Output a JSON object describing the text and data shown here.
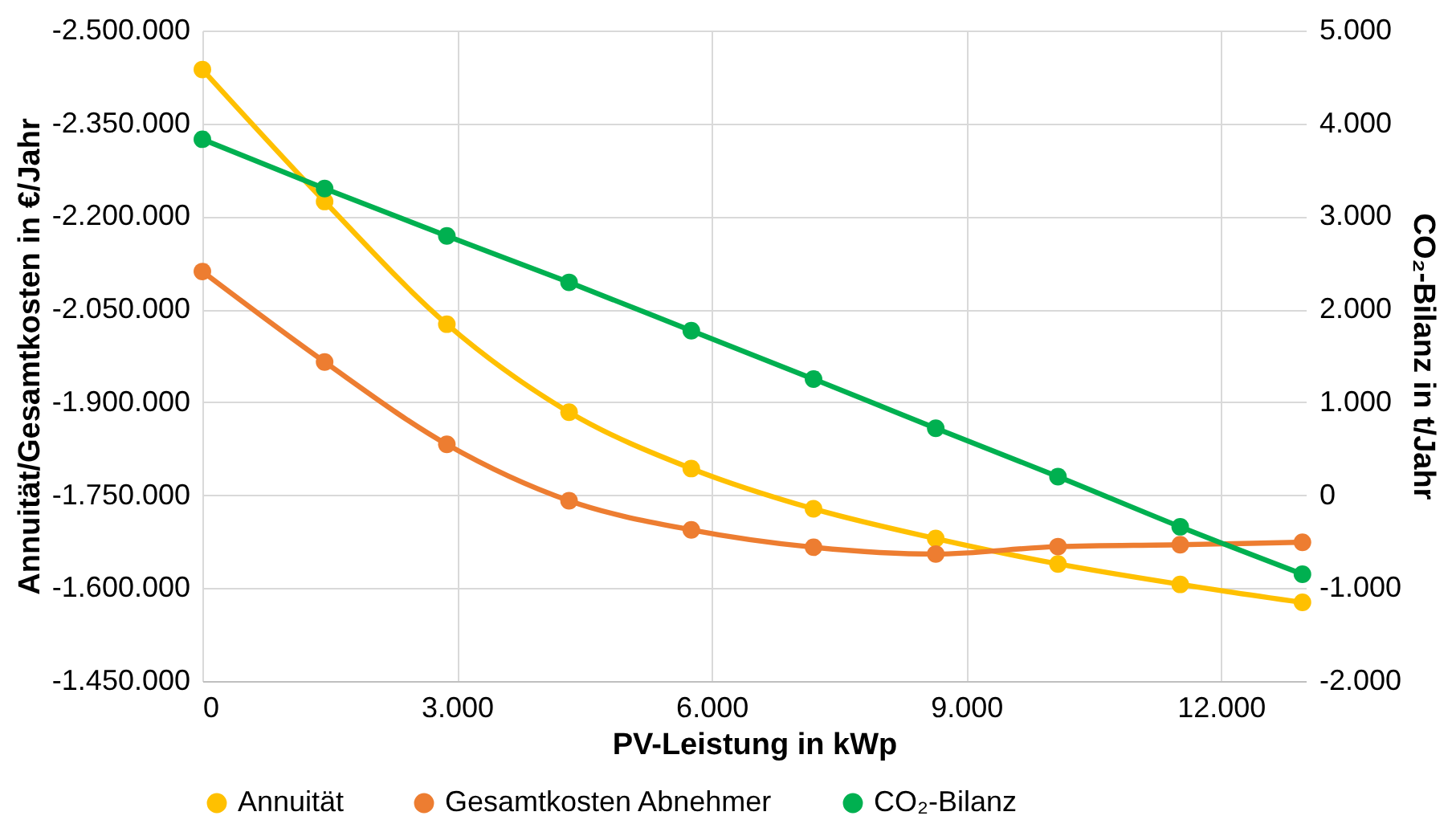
{
  "chart_data": {
    "type": "line",
    "x": [
      0,
      1440,
      2880,
      4320,
      5760,
      7200,
      8640,
      10080,
      11520,
      12960
    ],
    "xlim": [
      0,
      13000
    ],
    "xticks": [
      0,
      {
        "value": 3000,
        "label": "3.000"
      },
      {
        "value": 6000,
        "label": "6.000"
      },
      {
        "value": 9000,
        "label": "9.000"
      },
      {
        "value": 12000,
        "label": "12.000"
      }
    ],
    "ylim": [
      -1450000,
      -2500000
    ],
    "yticks": [
      {
        "value": -2500000,
        "label": "-2.500.000"
      },
      {
        "value": -2350000,
        "label": "-2.350.000"
      },
      {
        "value": -2200000,
        "label": "-2.200.000"
      },
      {
        "value": -2050000,
        "label": "-2.050.000"
      },
      {
        "value": -1900000,
        "label": "-1.900.000"
      },
      {
        "value": -1750000,
        "label": "-1.750.000"
      },
      {
        "value": -1600000,
        "label": "-1.600.000"
      },
      {
        "value": -1450000,
        "label": "-1.450.000"
      }
    ],
    "y2lim": [
      -2000,
      5000
    ],
    "y2ticks": [
      {
        "value": 5000,
        "label": "5.000"
      },
      {
        "value": 4000,
        "label": "4.000"
      },
      {
        "value": 3000,
        "label": "3.000"
      },
      {
        "value": 2000,
        "label": "2.000"
      },
      {
        "value": 1000,
        "label": "1.000"
      },
      0,
      {
        "value": -1000,
        "label": "-1.000"
      },
      {
        "value": -2000,
        "label": "-2.000"
      }
    ],
    "xlabel": "PV-Leistung in kWp",
    "ylabel": "Annuität/Gesamtkosten in €/Jahr",
    "y2label": "CO₂-Bilanz in t/Jahr",
    "grid": true,
    "legend": "bottom",
    "marker": "circle",
    "line_style": "solid",
    "series": [
      {
        "name": "Annuität",
        "color": "#ffc000",
        "values": [
          -2437000,
          -2224000,
          -2026000,
          -1884000,
          -1793000,
          -1728000,
          -1680000,
          -1639000,
          -1606000,
          -1577000
        ]
      },
      {
        "name": "Gesamtkosten Abnehmer",
        "color": "#ed7d31",
        "values": [
          -2111000,
          -1965000,
          -1832000,
          -1741000,
          -1694000,
          -1666000,
          -1655000,
          -1667000,
          -1670000,
          -1674000
        ]
      },
      {
        "name": "CO₂-Bilanz",
        "color": "#00b050",
        "axis": "y2",
        "values": [
          3830,
          3300,
          2790,
          2290,
          1770,
          1250,
          720,
          200,
          -340,
          -850
        ]
      }
    ]
  }
}
